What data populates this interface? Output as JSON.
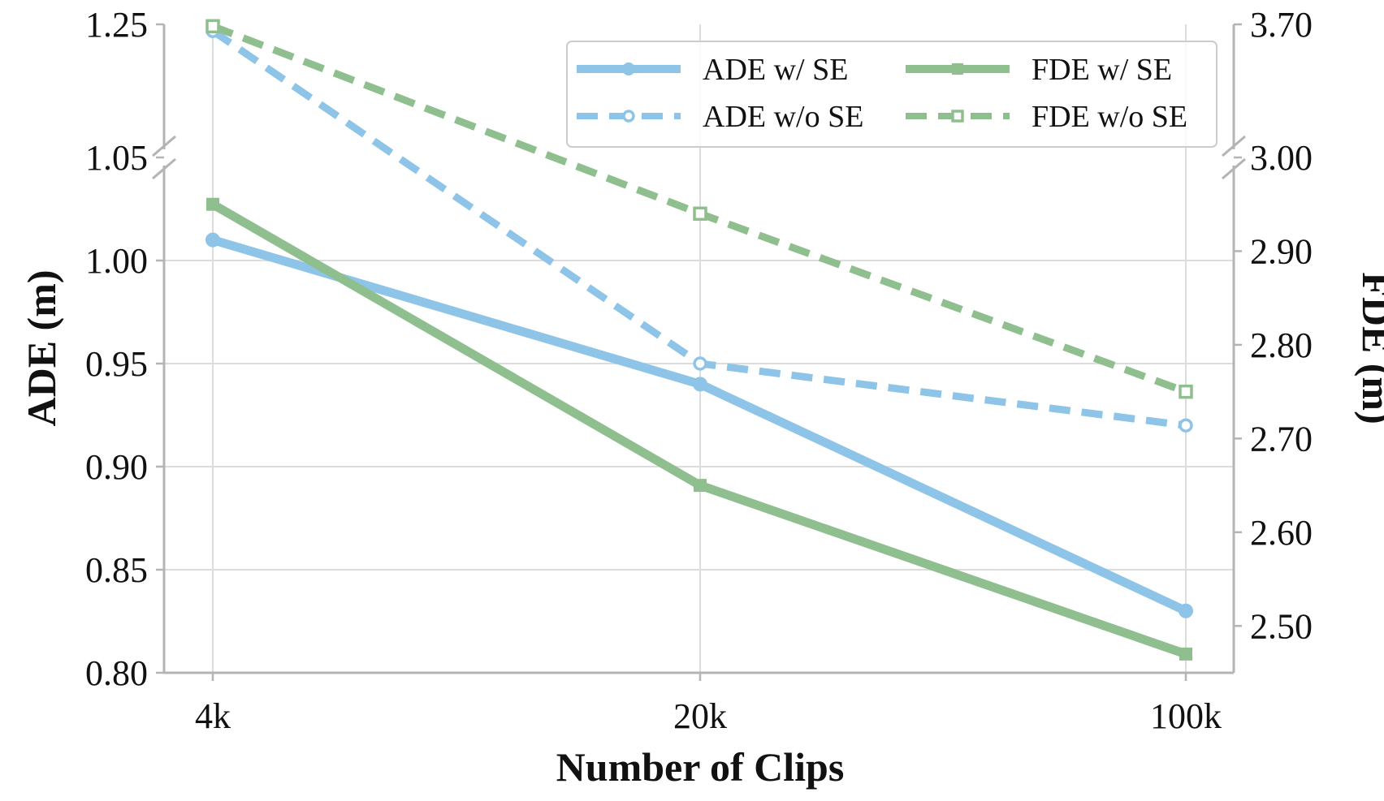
{
  "chart_data": {
    "type": "line",
    "xlabel": "Number of Clips",
    "ylabel_left": "ADE (m)",
    "ylabel_right": "FDE (m)",
    "categories": [
      "4k",
      "20k",
      "100k"
    ],
    "left_axis": {
      "lower_range": [
        0.8,
        1.05
      ],
      "upper_range": [
        1.05,
        1.25
      ],
      "ticks": [
        0.8,
        0.85,
        0.9,
        0.95,
        1.0,
        1.05,
        1.25
      ],
      "tick_labels": [
        "0.80",
        "0.85",
        "0.90",
        "0.95",
        "1.00",
        "1.05",
        "1.25"
      ],
      "broken": true
    },
    "right_axis": {
      "lower_range": [
        2.45,
        3.0
      ],
      "upper_range": [
        3.0,
        3.7
      ],
      "ticks": [
        2.5,
        2.6,
        2.7,
        2.8,
        2.9,
        3.0,
        3.7
      ],
      "tick_labels": [
        "2.50",
        "2.60",
        "2.70",
        "2.80",
        "2.90",
        "3.00",
        "3.70"
      ],
      "broken": true
    },
    "grid": true,
    "legend_position": "top-right",
    "series": [
      {
        "name": "ADE w/ SE",
        "axis": "left",
        "values": [
          1.01,
          0.94,
          0.83
        ],
        "color": "#8ec4e8",
        "style": "solid",
        "marker": "circle-filled"
      },
      {
        "name": "ADE w/o SE",
        "axis": "left",
        "values": [
          1.24,
          0.95,
          0.92
        ],
        "color": "#8ec4e8",
        "style": "dashed",
        "marker": "circle-open"
      },
      {
        "name": "FDE w/ SE",
        "axis": "right",
        "values": [
          2.95,
          2.65,
          2.47
        ],
        "color": "#8fbf8f",
        "style": "solid",
        "marker": "square-filled"
      },
      {
        "name": "FDE w/o SE",
        "axis": "right",
        "values": [
          3.69,
          2.94,
          2.75
        ],
        "color": "#8fbf8f",
        "style": "dashed",
        "marker": "square-open"
      }
    ]
  }
}
